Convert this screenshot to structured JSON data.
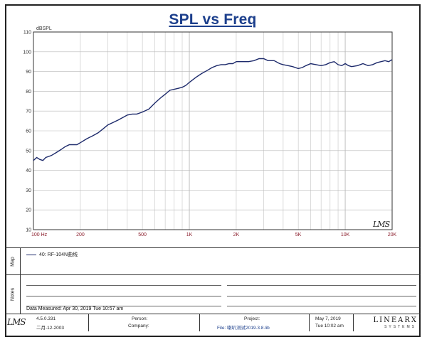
{
  "chart_data": {
    "type": "line",
    "title": "SPL vs Freq",
    "ylabel": "dBSPL",
    "xlabel": "",
    "x_scale": "log",
    "xlim": [
      100,
      20000
    ],
    "ylim": [
      10,
      110
    ],
    "grid": true,
    "y_ticks": [
      "10",
      "20",
      "30",
      "40",
      "50",
      "60",
      "70",
      "80",
      "90",
      "100",
      "110"
    ],
    "x_ticks": [
      "100 Hz",
      "200",
      "500",
      "1K",
      "2K",
      "5K",
      "10K",
      "20K"
    ],
    "series": [
      {
        "name": "40: RF-104N曲线",
        "color": "#1d2a6b",
        "x": [
          100,
          105,
          110,
          115,
          120,
          130,
          140,
          150,
          160,
          170,
          180,
          190,
          200,
          220,
          240,
          260,
          280,
          300,
          320,
          350,
          380,
          400,
          430,
          460,
          500,
          550,
          600,
          650,
          700,
          750,
          800,
          850,
          900,
          950,
          1000,
          1100,
          1200,
          1300,
          1400,
          1500,
          1600,
          1700,
          1800,
          1900,
          2000,
          2200,
          2400,
          2600,
          2800,
          3000,
          3200,
          3500,
          3800,
          4000,
          4300,
          4600,
          5000,
          5300,
          5600,
          6000,
          6500,
          7000,
          7500,
          8000,
          8500,
          9000,
          9500,
          10000,
          10500,
          11000,
          12000,
          13000,
          14000,
          15000,
          16000,
          17000,
          18000,
          19000,
          20000
        ],
        "y": [
          45,
          46.5,
          45.5,
          45,
          46.5,
          47.5,
          49,
          50.5,
          52,
          53,
          53,
          53,
          54,
          56,
          57.5,
          59,
          61,
          63,
          64,
          65.5,
          67,
          68,
          68.5,
          68.5,
          69.5,
          71,
          74,
          76.5,
          78.5,
          80.5,
          81,
          81.5,
          82,
          83,
          84.5,
          87,
          89,
          90.5,
          92,
          93,
          93.5,
          93.5,
          94,
          94,
          95,
          95,
          95,
          95.5,
          96.5,
          96.5,
          95.5,
          95.5,
          94,
          93.5,
          93,
          92.5,
          91.5,
          92,
          93,
          94,
          93.5,
          93,
          93.5,
          94.5,
          95,
          93.5,
          93,
          94,
          93,
          92.5,
          93,
          94,
          93,
          93.5,
          94.5,
          95,
          95.5,
          95,
          96
        ]
      }
    ]
  },
  "map": {
    "tab_label": "Map",
    "entry": "40: RF-104N曲线"
  },
  "notes": {
    "tab_label": "Notes",
    "measured": "Data Measured: Apr 30, 2019  Tue 10:57 am"
  },
  "watermark": "LMS",
  "footer": {
    "logo": "LMS",
    "version": "4.5.0.331",
    "date_code": "二月-12-2003",
    "person_label": "Person:",
    "company_label": "Company:",
    "project_label": "Project:",
    "file_label": "File: 喇叭测试2019.3.8.lib",
    "date": "May  7, 2019",
    "time": "Tue 10:02 am",
    "brand": "LINEARX",
    "brand_sub": "SYSTEMS"
  },
  "colors": {
    "title": "#1c3f8c",
    "curve": "#1d2a6b",
    "x_tick": "#8a1c2a",
    "grid": "#b9b9b9"
  }
}
